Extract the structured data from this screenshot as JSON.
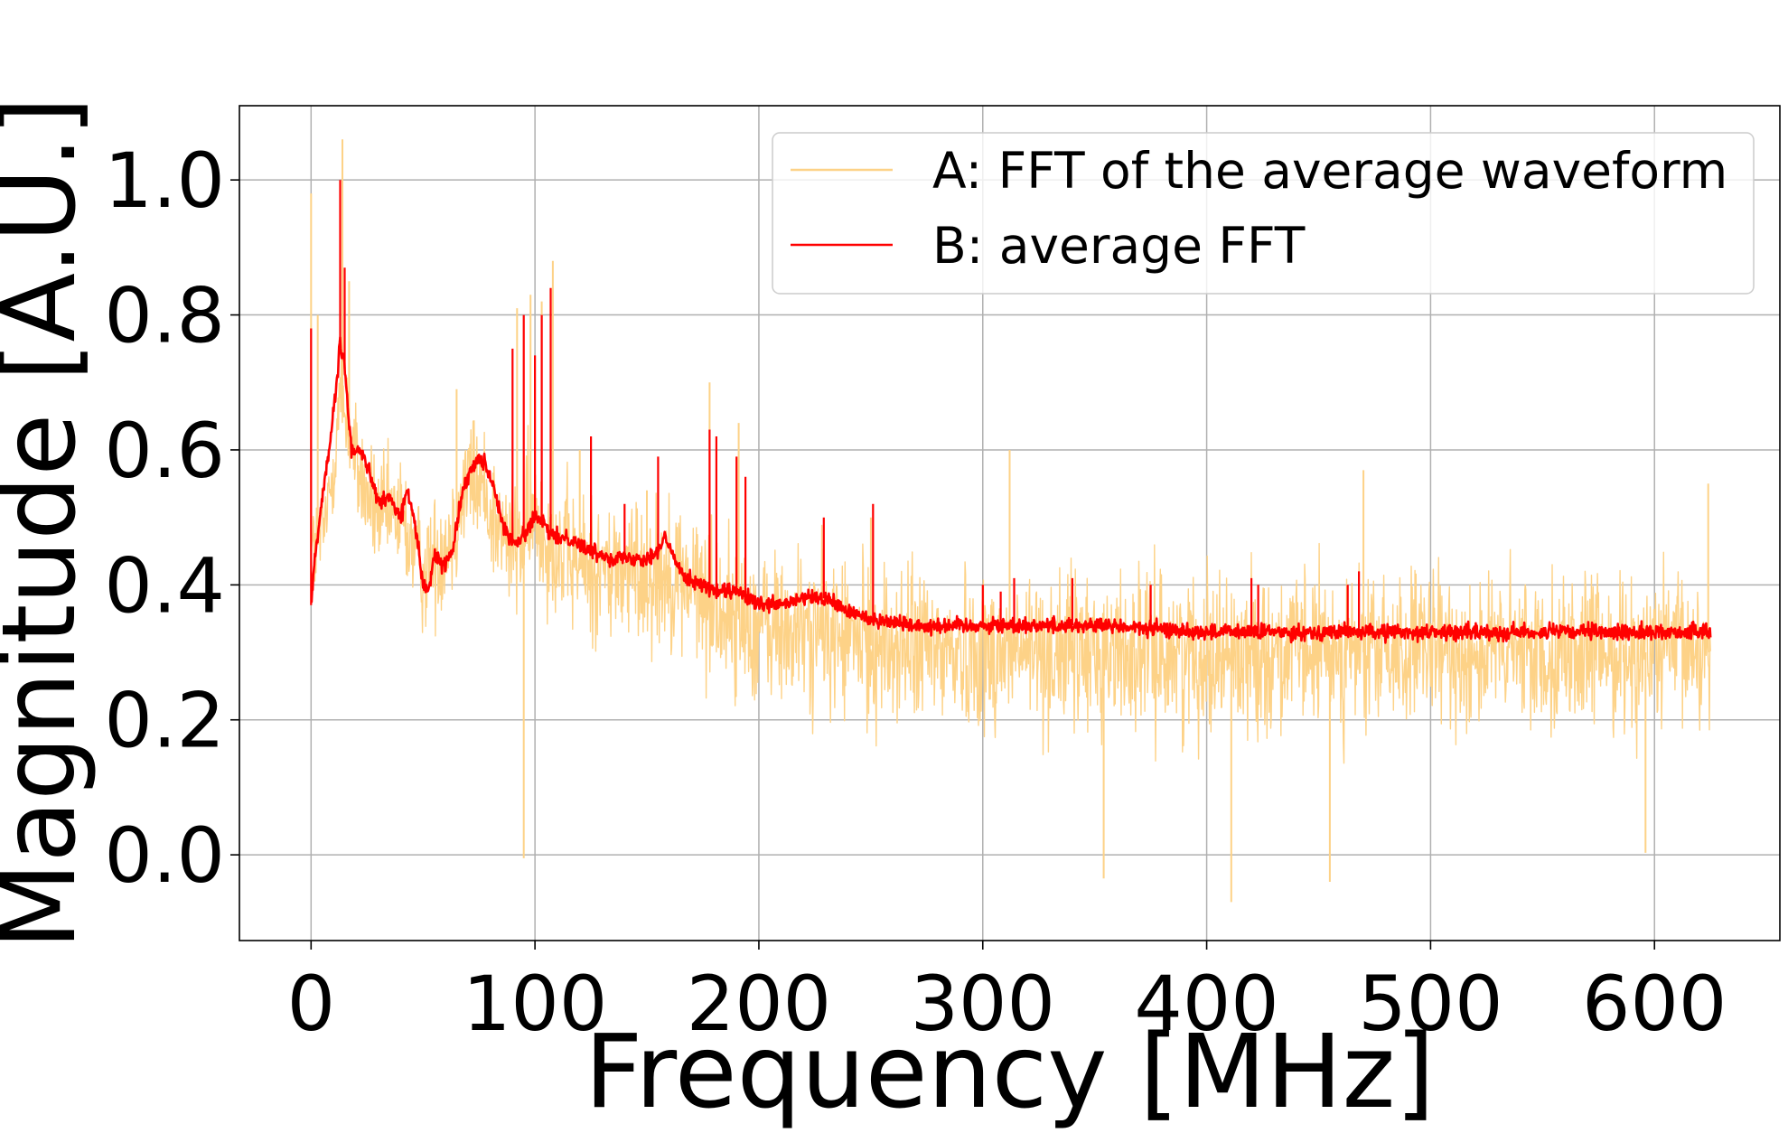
{
  "chart_data": {
    "type": "line",
    "title": "",
    "xlabel": "Frequency [MHz]",
    "ylabel": "Magnitude [A.U.]",
    "xlim": [
      -32,
      656
    ],
    "ylim": [
      -0.127,
      1.11
    ],
    "grid": true,
    "legend_placement": "top-right",
    "x_ticks": [
      0,
      100,
      200,
      300,
      400,
      500,
      600
    ],
    "x_tick_labels": [
      "0",
      "100",
      "200",
      "300",
      "400",
      "500",
      "600"
    ],
    "y_ticks": [
      0.0,
      0.2,
      0.4,
      0.6,
      0.8,
      1.0
    ],
    "y_tick_labels": [
      "0.0",
      "0.2",
      "0.4",
      "0.6",
      "0.8",
      "1.0"
    ],
    "series": [
      {
        "name": "A: FFT of the average waveform",
        "color": "#fdd287",
        "x_range": [
          0,
          625
        ],
        "baseline": [
          [
            0,
            0.45
          ],
          [
            3,
            0.46
          ],
          [
            7,
            0.5
          ],
          [
            10,
            0.58
          ],
          [
            13,
            0.68
          ],
          [
            16,
            0.65
          ],
          [
            20,
            0.58
          ],
          [
            25,
            0.53
          ],
          [
            30,
            0.5
          ],
          [
            35,
            0.5
          ],
          [
            40,
            0.5
          ],
          [
            45,
            0.46
          ],
          [
            50,
            0.42
          ],
          [
            55,
            0.44
          ],
          [
            60,
            0.46
          ],
          [
            65,
            0.5
          ],
          [
            70,
            0.56
          ],
          [
            75,
            0.55
          ],
          [
            80,
            0.52
          ],
          [
            85,
            0.47
          ],
          [
            90,
            0.46
          ],
          [
            95,
            0.47
          ],
          [
            100,
            0.5
          ],
          [
            105,
            0.48
          ],
          [
            110,
            0.45
          ],
          [
            120,
            0.43
          ],
          [
            130,
            0.42
          ],
          [
            140,
            0.42
          ],
          [
            150,
            0.42
          ],
          [
            160,
            0.42
          ],
          [
            170,
            0.4
          ],
          [
            180,
            0.37
          ],
          [
            190,
            0.35
          ],
          [
            200,
            0.34
          ],
          [
            210,
            0.33
          ],
          [
            220,
            0.33
          ],
          [
            230,
            0.33
          ],
          [
            240,
            0.32
          ],
          [
            250,
            0.31
          ],
          [
            300,
            0.3
          ],
          [
            400,
            0.3
          ],
          [
            500,
            0.3
          ],
          [
            625,
            0.3
          ]
        ],
        "spread": [
          [
            0,
            0.1
          ],
          [
            100,
            0.13
          ],
          [
            200,
            0.15
          ],
          [
            625,
            0.14
          ]
        ],
        "spikes": [
          [
            0,
            0.98
          ],
          [
            3,
            0.8
          ],
          [
            14,
            1.06
          ],
          [
            17,
            0.85
          ],
          [
            65,
            0.69
          ],
          [
            92,
            0.81
          ],
          [
            98,
            0.83
          ],
          [
            103,
            0.82
          ],
          [
            108,
            0.88
          ],
          [
            120,
            0.6
          ],
          [
            150,
            0.54
          ],
          [
            178,
            0.7
          ],
          [
            191,
            0.64
          ],
          [
            250,
            0.5
          ],
          [
            312,
            0.6
          ],
          [
            470,
            0.57
          ],
          [
            624,
            0.55
          ]
        ],
        "dips": [
          [
            95,
            -0.005
          ],
          [
            354,
            -0.035
          ],
          [
            411,
            -0.07
          ],
          [
            455,
            -0.04
          ],
          [
            596,
            0.003
          ]
        ]
      },
      {
        "name": "B: average FFT",
        "color": "#ff0000",
        "x_range": [
          0,
          625
        ],
        "baseline": [
          [
            0,
            0.37
          ],
          [
            2,
            0.45
          ],
          [
            5,
            0.53
          ],
          [
            8,
            0.6
          ],
          [
            11,
            0.68
          ],
          [
            13,
            0.76
          ],
          [
            15,
            0.72
          ],
          [
            18,
            0.6
          ],
          [
            22,
            0.6
          ],
          [
            26,
            0.57
          ],
          [
            30,
            0.52
          ],
          [
            35,
            0.53
          ],
          [
            40,
            0.5
          ],
          [
            43,
            0.54
          ],
          [
            46,
            0.5
          ],
          [
            50,
            0.4
          ],
          [
            52,
            0.39
          ],
          [
            55,
            0.44
          ],
          [
            60,
            0.43
          ],
          [
            63,
            0.45
          ],
          [
            67,
            0.53
          ],
          [
            70,
            0.56
          ],
          [
            74,
            0.59
          ],
          [
            78,
            0.58
          ],
          [
            82,
            0.54
          ],
          [
            85,
            0.5
          ],
          [
            88,
            0.47
          ],
          [
            92,
            0.46
          ],
          [
            96,
            0.48
          ],
          [
            100,
            0.5
          ],
          [
            104,
            0.49
          ],
          [
            108,
            0.47
          ],
          [
            115,
            0.47
          ],
          [
            125,
            0.45
          ],
          [
            135,
            0.44
          ],
          [
            145,
            0.44
          ],
          [
            150,
            0.44
          ],
          [
            155,
            0.45
          ],
          [
            158,
            0.47
          ],
          [
            162,
            0.44
          ],
          [
            168,
            0.41
          ],
          [
            175,
            0.4
          ],
          [
            180,
            0.39
          ],
          [
            190,
            0.39
          ],
          [
            200,
            0.37
          ],
          [
            210,
            0.37
          ],
          [
            220,
            0.38
          ],
          [
            230,
            0.38
          ],
          [
            240,
            0.36
          ],
          [
            250,
            0.35
          ],
          [
            270,
            0.34
          ],
          [
            300,
            0.34
          ],
          [
            350,
            0.34
          ],
          [
            400,
            0.33
          ],
          [
            450,
            0.33
          ],
          [
            500,
            0.33
          ],
          [
            550,
            0.33
          ],
          [
            600,
            0.33
          ],
          [
            625,
            0.33
          ]
        ],
        "spikes": [
          [
            0,
            0.78
          ],
          [
            13,
            1.0
          ],
          [
            15,
            0.87
          ],
          [
            90,
            0.75
          ],
          [
            95,
            0.8
          ],
          [
            100,
            0.74
          ],
          [
            103,
            0.8
          ],
          [
            107,
            0.84
          ],
          [
            125,
            0.62
          ],
          [
            140,
            0.52
          ],
          [
            155,
            0.59
          ],
          [
            178,
            0.63
          ],
          [
            181,
            0.62
          ],
          [
            190,
            0.59
          ],
          [
            194,
            0.56
          ],
          [
            229,
            0.5
          ],
          [
            251,
            0.52
          ],
          [
            300,
            0.4
          ],
          [
            308,
            0.39
          ],
          [
            314,
            0.41
          ],
          [
            340,
            0.41
          ],
          [
            375,
            0.4
          ],
          [
            420,
            0.41
          ],
          [
            423,
            0.4
          ],
          [
            463,
            0.4
          ],
          [
            468,
            0.42
          ]
        ]
      }
    ]
  }
}
